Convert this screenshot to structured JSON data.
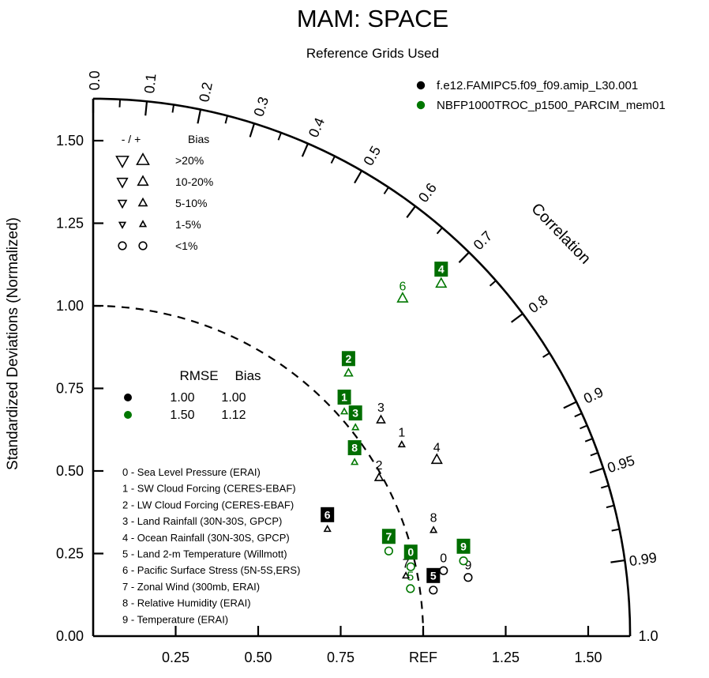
{
  "header": {
    "title": "MAM: SPACE",
    "subtitle": "Reference Grids Used"
  },
  "colors": {
    "black": "#000000",
    "green": "#007700",
    "green_box": "#006e00",
    "black_box": "#000000"
  },
  "series_legend": [
    {
      "key": "black",
      "label": "f.e12.FAMIPC5.f09_f09.amip_L30.001"
    },
    {
      "key": "green",
      "label": "NBFP1000TROC_p1500_PARCIM_mem01"
    }
  ],
  "bias_legend": {
    "header_symbols": "- / +",
    "header_label": "Bias",
    "rows": [
      {
        "label": ">20%",
        "marker": "triangle",
        "size": 15
      },
      {
        "label": "10-20%",
        "marker": "triangle",
        "size": 12.5
      },
      {
        "label": "5-10%",
        "marker": "triangle",
        "size": 10
      },
      {
        "label": "1-5%",
        "marker": "triangle",
        "size": 7.5
      },
      {
        "label": "<1%",
        "marker": "circle",
        "size": 9.6
      }
    ]
  },
  "stats_legend": {
    "col1": "RMSE",
    "col2": "Bias",
    "rows": [
      {
        "key": "black",
        "rmse": "1.00",
        "bias": "1.00"
      },
      {
        "key": "green",
        "rmse": "1.50",
        "bias": "1.12"
      }
    ]
  },
  "variables": [
    "0 - Sea Level Pressure (ERAI)",
    "1 - SW Cloud Forcing (CERES-EBAF)",
    "2 - LW Cloud Forcing (CERES-EBAF)",
    "3 - Land Rainfall (30N-30S, GPCP)",
    "4 - Ocean Rainfall (30N-30S, GPCP)",
    "5 - Land 2-m Temperature (Willmott)",
    "6 - Pacific Surface Stress (5N-5S,ERS)",
    "7 - Zonal Wind (300mb, ERAI)",
    "8 - Relative Humidity (ERAI)",
    "9 - Temperature (ERAI)"
  ],
  "chart_data": {
    "type": "scatter",
    "subtype": "taylor-diagram",
    "std_axis": {
      "label": "Standardized Deviations (Normalized)",
      "x_tick_labels": [
        "0.25",
        "0.50",
        "0.75",
        "REF",
        "1.25",
        "1.50"
      ],
      "y_tick_labels": [
        "0.00",
        "0.25",
        "0.50",
        "0.75",
        "1.00",
        "1.25",
        "1.50"
      ],
      "tick_values": [
        0.25,
        0.5,
        0.75,
        1.0,
        1.25,
        1.5
      ],
      "max": 1.627,
      "ref_circle_radius": 1.0
    },
    "corr_axis": {
      "label": "Correlation",
      "major_ticks": [
        {
          "v": 0.0,
          "label": "0.0"
        },
        {
          "v": 0.1,
          "label": "0.1"
        },
        {
          "v": 0.2,
          "label": "0.2"
        },
        {
          "v": 0.3,
          "label": "0.3"
        },
        {
          "v": 0.4,
          "label": "0.4"
        },
        {
          "v": 0.5,
          "label": "0.5"
        },
        {
          "v": 0.6,
          "label": "0.6"
        },
        {
          "v": 0.7,
          "label": "0.7"
        },
        {
          "v": 0.8,
          "label": "0.8"
        },
        {
          "v": 0.9,
          "label": "0.9"
        },
        {
          "v": 0.95,
          "label": "0.95"
        },
        {
          "v": 0.99,
          "label": "0.99"
        },
        {
          "v": 1.0,
          "label": "1.0"
        }
      ],
      "minor_ticks": [
        0.05,
        0.15,
        0.25,
        0.35,
        0.45,
        0.55,
        0.65,
        0.75,
        0.85,
        0.91,
        0.92,
        0.93,
        0.94,
        0.96,
        0.97,
        0.98
      ]
    },
    "bias_size_map": {
      ">20%": 15,
      "10-20%": 12.5,
      "5-10%": 10,
      "1-5%": 7.5,
      "<1%": 9.6
    },
    "points": [
      {
        "var": 0,
        "series": "black",
        "corr": 0.983,
        "std": 1.08,
        "bias": "<1%",
        "marker": "circle",
        "boxed": false
      },
      {
        "var": 1,
        "series": "black",
        "corr": 0.85,
        "std": 1.1,
        "bias": "1-5%",
        "marker": "triangle-up",
        "boxed": false
      },
      {
        "var": 2,
        "series": "black",
        "corr": 0.875,
        "std": 0.99,
        "bias": "5-10%",
        "marker": "triangle-up",
        "boxed": false
      },
      {
        "var": 3,
        "series": "black",
        "corr": 0.8,
        "std": 1.09,
        "bias": "5-10%",
        "marker": "triangle-up",
        "boxed": false
      },
      {
        "var": 4,
        "series": "black",
        "corr": 0.89,
        "std": 1.17,
        "bias": "10-20%",
        "marker": "triangle-up",
        "boxed": false
      },
      {
        "var": 5,
        "series": "black",
        "corr": 0.991,
        "std": 1.04,
        "bias": "<1%",
        "marker": "circle",
        "boxed": true
      },
      {
        "var": 6,
        "series": "black",
        "corr": 0.91,
        "std": 0.78,
        "bias": "1-5%",
        "marker": "triangle-up",
        "boxed": true
      },
      {
        "var": 7,
        "series": "black",
        "corr": 0.982,
        "std": 0.965,
        "bias": "1-5%",
        "marker": "triangle-up",
        "boxed": false
      },
      {
        "var": 8,
        "series": "black",
        "corr": 0.955,
        "std": 1.08,
        "bias": "1-5%",
        "marker": "triangle-up",
        "boxed": false
      },
      {
        "var": 9,
        "series": "black",
        "corr": 0.988,
        "std": 1.15,
        "bias": "<1%",
        "marker": "circle",
        "boxed": false
      },
      {
        "var": 0,
        "series": "green",
        "corr": 0.977,
        "std": 0.985,
        "bias": "<1%",
        "marker": "circle",
        "boxed": true
      },
      {
        "var": 1,
        "series": "green",
        "corr": 0.746,
        "std": 1.02,
        "bias": "1-5%",
        "marker": "triangle-up",
        "boxed": true
      },
      {
        "var": 2,
        "series": "green",
        "corr": 0.697,
        "std": 1.11,
        "bias": "5-10%",
        "marker": "triangle-up",
        "boxed": true
      },
      {
        "var": 3,
        "series": "green",
        "corr": 0.783,
        "std": 1.015,
        "bias": "1-5%",
        "marker": "triangle-up",
        "boxed": true
      },
      {
        "var": 4,
        "series": "green",
        "corr": 0.703,
        "std": 1.5,
        "bias": "10-20%",
        "marker": "triangle-up",
        "boxed": true
      },
      {
        "var": 5,
        "series": "green",
        "corr": 0.989,
        "std": 0.972,
        "bias": "<1%",
        "marker": "circle",
        "boxed": false
      },
      {
        "var": 6,
        "series": "green",
        "corr": 0.676,
        "std": 1.387,
        "bias": "10-20%",
        "marker": "triangle-up",
        "boxed": false
      },
      {
        "var": 7,
        "series": "green",
        "corr": 0.961,
        "std": 0.932,
        "bias": "<1%",
        "marker": "circle",
        "boxed": true
      },
      {
        "var": 8,
        "series": "green",
        "corr": 0.833,
        "std": 0.951,
        "bias": "1-5%",
        "marker": "triangle-up",
        "boxed": true
      },
      {
        "var": 9,
        "series": "green",
        "corr": 0.98,
        "std": 1.145,
        "bias": "<1%",
        "marker": "circle",
        "boxed": true
      }
    ]
  }
}
